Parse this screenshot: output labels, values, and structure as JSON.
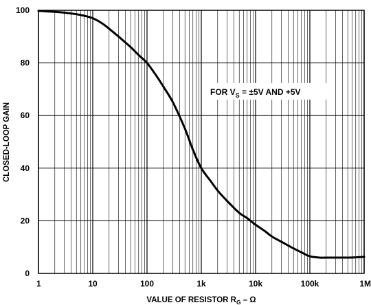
{
  "chart_data": {
    "type": "line",
    "x_scale": "log",
    "xlim": [
      1,
      1000000
    ],
    "ylim": [
      0,
      100
    ],
    "grid": true,
    "xlabel": "VALUE OF RESISTOR R",
    "xlabel_sub": "G",
    "xlabel_suffix": " – Ω",
    "ylabel": "CLOSED-LOOP GAIN",
    "annotation": {
      "prefix": "FOR V",
      "sub": "S",
      "suffix": " = ±5V AND +5V"
    },
    "x_ticks": [
      {
        "value": 1,
        "label": "1"
      },
      {
        "value": 10,
        "label": "10"
      },
      {
        "value": 100,
        "label": "100"
      },
      {
        "value": 1000,
        "label": "1k"
      },
      {
        "value": 10000,
        "label": "10k"
      },
      {
        "value": 100000,
        "label": "100k"
      },
      {
        "value": 1000000,
        "label": "1M"
      }
    ],
    "y_ticks": [
      {
        "value": 0,
        "label": "0"
      },
      {
        "value": 20,
        "label": "20"
      },
      {
        "value": 40,
        "label": "40"
      },
      {
        "value": 60,
        "label": "60"
      },
      {
        "value": 80,
        "label": "80"
      },
      {
        "value": 100,
        "label": "100"
      }
    ],
    "series": [
      {
        "color": "#000000",
        "x": [
          1,
          2,
          3,
          5,
          7,
          10,
          15,
          20,
          30,
          50,
          70,
          100,
          150,
          200,
          300,
          500,
          700,
          1000,
          1500,
          2000,
          3000,
          5000,
          7000,
          10000,
          15000,
          20000,
          30000,
          50000,
          70000,
          100000,
          150000,
          200000,
          300000,
          500000,
          700000,
          1000000
        ],
        "y": [
          99.8,
          99.4,
          99.1,
          98.5,
          97.9,
          97.0,
          95.0,
          93.0,
          90.0,
          86.0,
          83.0,
          80.0,
          75.0,
          71.0,
          65.0,
          55.0,
          47.0,
          40.0,
          35.0,
          31.5,
          27.5,
          23.0,
          21.0,
          18.5,
          16.0,
          14.0,
          12.0,
          9.5,
          8.0,
          6.5,
          6.0,
          6.0,
          6.0,
          6.0,
          6.1,
          6.3
        ]
      }
    ]
  }
}
